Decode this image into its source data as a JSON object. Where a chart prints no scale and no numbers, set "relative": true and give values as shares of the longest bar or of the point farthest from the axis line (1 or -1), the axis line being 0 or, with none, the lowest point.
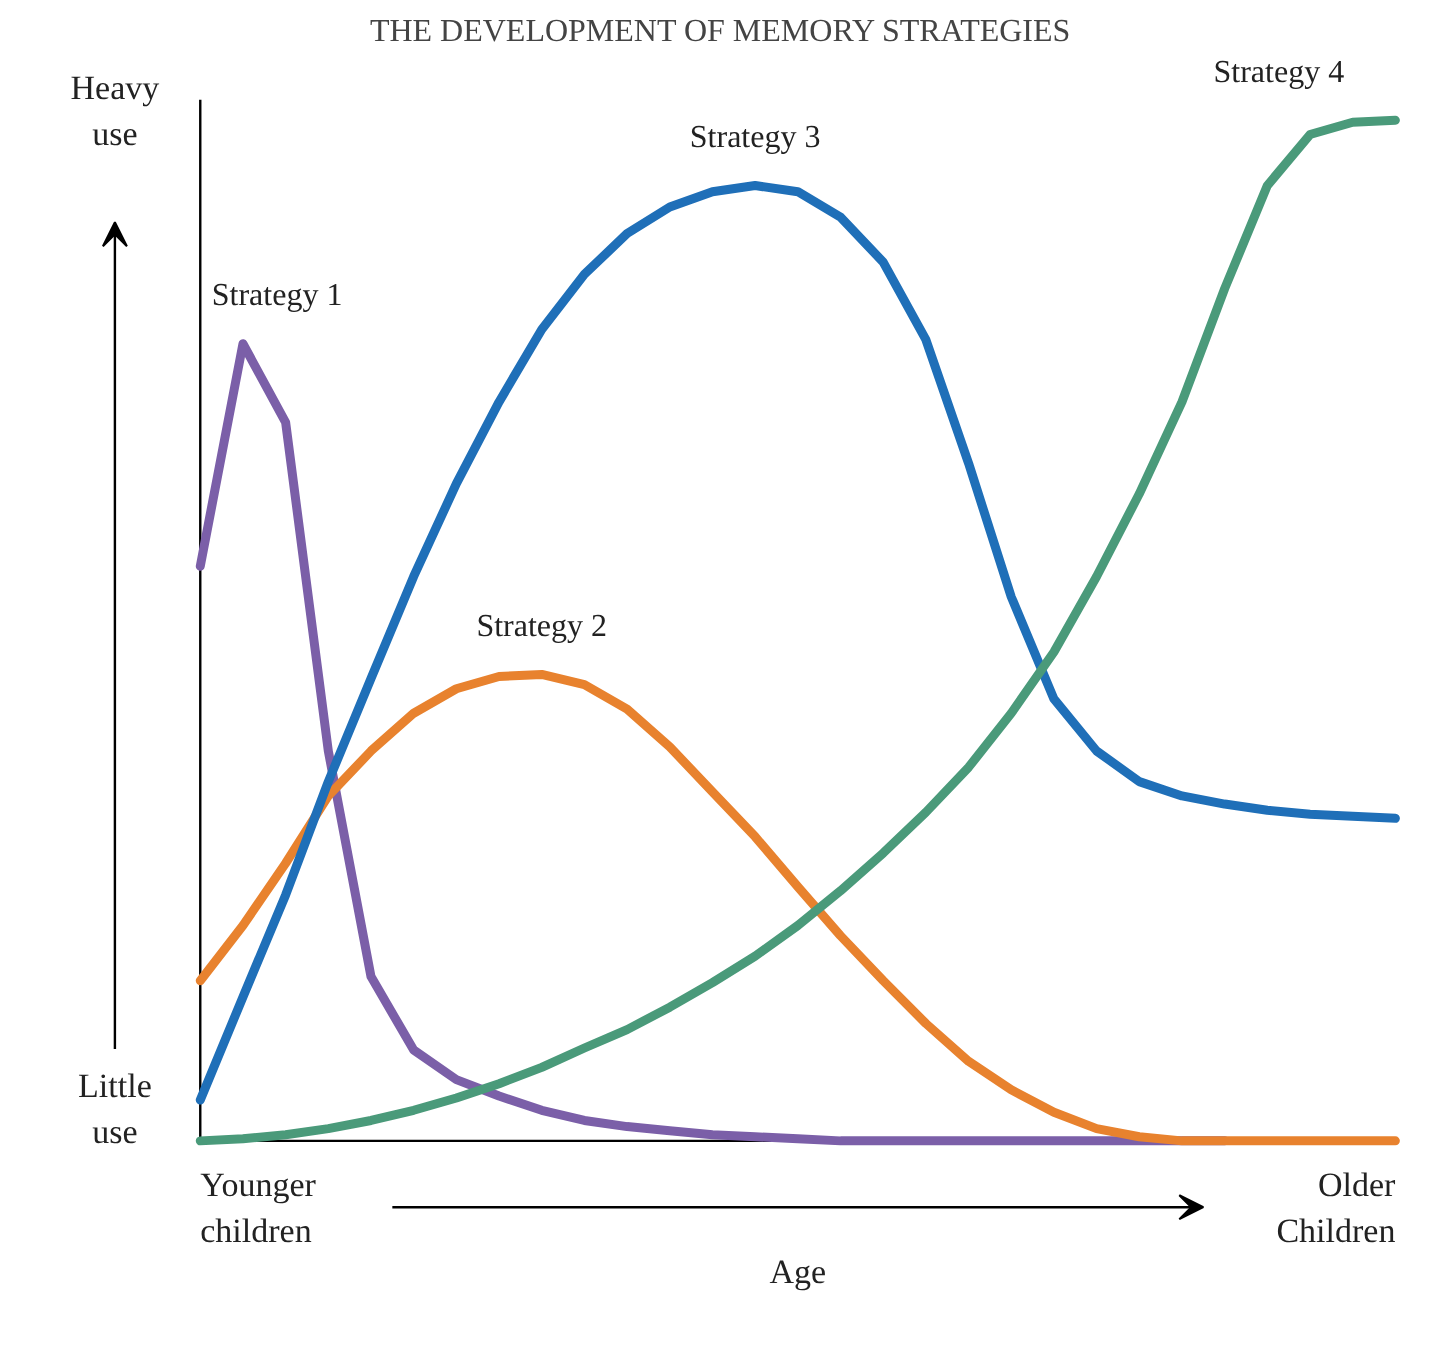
{
  "chart_data": {
    "type": "line",
    "title": "THE DEVELOPMENT OF MEMORY STRATEGIES",
    "xlabel": "Age",
    "relative": true,
    "grid": false,
    "marker": "none",
    "line_style": "solid",
    "annotations": [
      "Heavy use",
      "Little use",
      "Younger children",
      "Older Children"
    ],
    "categories": [
      null,
      null,
      null,
      null,
      null,
      null,
      null,
      null,
      null,
      null,
      null,
      null,
      null,
      null,
      null,
      null,
      null,
      null,
      null,
      null,
      null,
      null,
      null,
      null,
      null,
      null,
      null,
      null,
      null
    ],
    "series": [
      {
        "name": "Strategy 1",
        "color": "#7b5fa8",
        "values": [
          0.563,
          0.781,
          0.704,
          0.382,
          0.161,
          0.089,
          0.06,
          0.044,
          0.03,
          0.02,
          0.014,
          0.01,
          0.006,
          0.004,
          0.002,
          0,
          0,
          0,
          0,
          0,
          0,
          0,
          0,
          0,
          0,
          null,
          null,
          null,
          null
        ]
      },
      {
        "name": "Strategy 2",
        "color": "#e8822e",
        "values": [
          0.157,
          0.211,
          0.272,
          0.338,
          0.382,
          0.419,
          0.443,
          0.455,
          0.457,
          0.447,
          0.423,
          0.386,
          0.342,
          0.298,
          0.249,
          0.201,
          0.157,
          0.115,
          0.078,
          0.05,
          0.028,
          0.012,
          0.004,
          0,
          0,
          0,
          0,
          0,
          0
        ]
      },
      {
        "name": "Strategy 3",
        "color": "#1f6fb8",
        "values": [
          0.04,
          0.141,
          0.241,
          0.352,
          0.453,
          0.553,
          0.644,
          0.724,
          0.795,
          0.849,
          0.889,
          0.915,
          0.93,
          0.936,
          0.93,
          0.905,
          0.861,
          0.785,
          0.664,
          0.533,
          0.433,
          0.382,
          0.352,
          0.338,
          0.33,
          0.324,
          0.32,
          0.318,
          0.316
        ]
      },
      {
        "name": "Strategy 4",
        "color": "#4a9a7a",
        "values": [
          0,
          0.002,
          0.006,
          0.012,
          0.02,
          0.03,
          0.042,
          0.056,
          0.072,
          0.091,
          0.109,
          0.131,
          0.155,
          0.181,
          0.211,
          0.245,
          0.282,
          0.322,
          0.366,
          0.419,
          0.479,
          0.553,
          0.634,
          0.724,
          0.835,
          0.936,
          0.986,
          0.998,
          1
        ]
      }
    ]
  }
}
